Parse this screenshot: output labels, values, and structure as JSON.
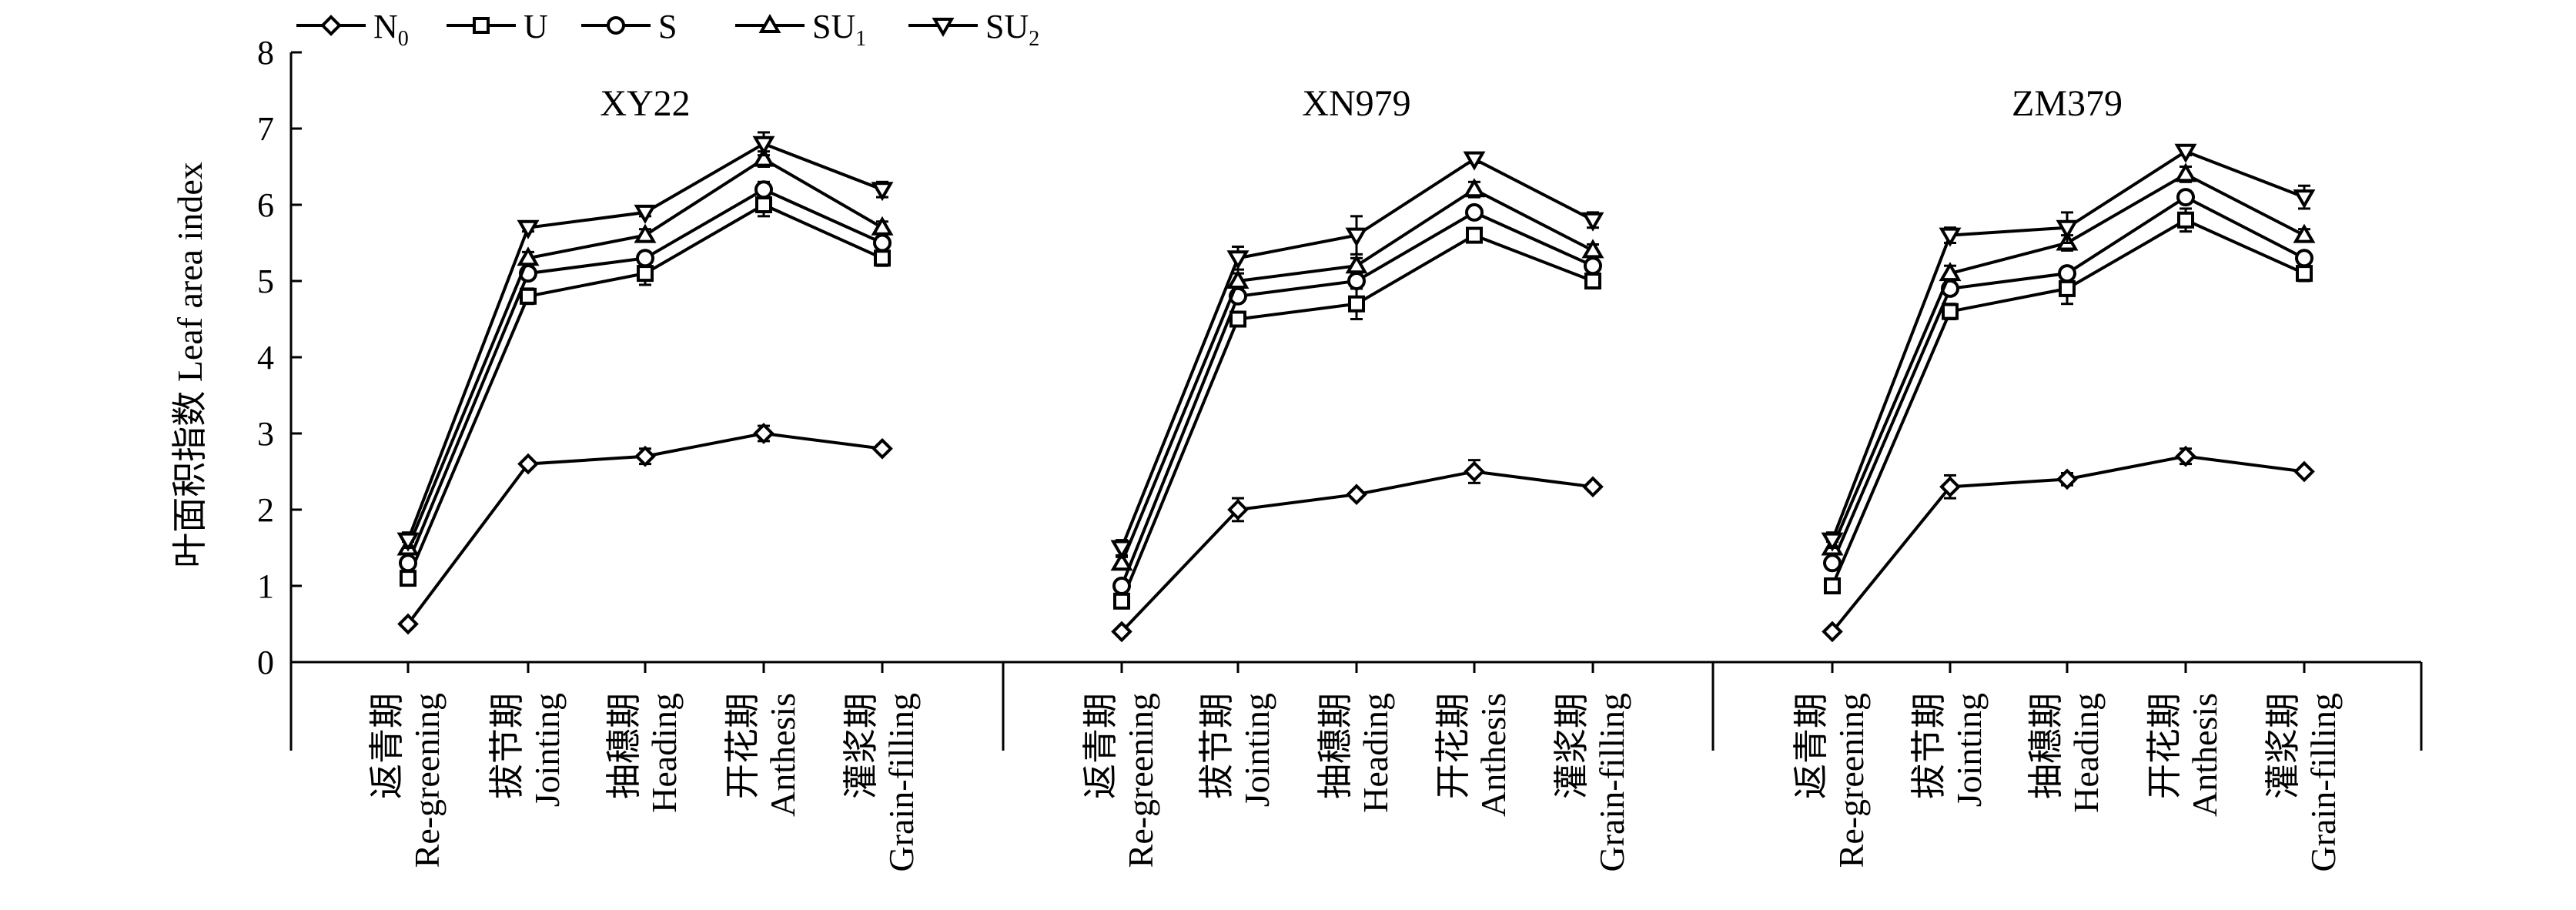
{
  "chart_data": {
    "type": "line",
    "ylabel": "叶面积指数 Leaf area index",
    "xlabel": "",
    "ylim": [
      0,
      8
    ],
    "yticks": [
      "0",
      "1",
      "2",
      "3",
      "4",
      "5",
      "6",
      "7",
      "8"
    ],
    "grid": false,
    "legend_placement": "top-left",
    "line_color": "#000000",
    "categories": [
      {
        "zh": "返青期",
        "en": "Re-greening"
      },
      {
        "zh": "拔节期",
        "en": "Jointing"
      },
      {
        "zh": "抽穗期",
        "en": "Heading"
      },
      {
        "zh": "开花期",
        "en": "Anthesis"
      },
      {
        "zh": "灌浆期",
        "en": "Grain-filling"
      }
    ],
    "legend": [
      {
        "base": "N",
        "sub": "0",
        "marker": "diamond"
      },
      {
        "base": "U",
        "sub": "",
        "marker": "square"
      },
      {
        "base": "S",
        "sub": "",
        "marker": "circle"
      },
      {
        "base": "SU",
        "sub": "1",
        "marker": "triangle-up"
      },
      {
        "base": "SU",
        "sub": "2",
        "marker": "triangle-down"
      }
    ],
    "panels": [
      {
        "title": "XY22",
        "series": [
          {
            "name": "N0",
            "values": [
              0.5,
              2.6,
              2.7,
              3.0,
              2.8
            ],
            "errors": [
              0.02,
              0.03,
              0.1,
              0.1,
              0.05
            ]
          },
          {
            "name": "U",
            "values": [
              1.1,
              4.8,
              5.1,
              6.0,
              5.3
            ],
            "errors": [
              0.05,
              0.1,
              0.15,
              0.15,
              0.1
            ]
          },
          {
            "name": "S",
            "values": [
              1.3,
              5.1,
              5.3,
              6.2,
              5.5
            ],
            "errors": [
              0.05,
              0.08,
              0.08,
              0.1,
              0.08
            ]
          },
          {
            "name": "SU1",
            "values": [
              1.5,
              5.3,
              5.6,
              6.6,
              5.7
            ],
            "errors": [
              0.08,
              0.08,
              0.08,
              0.1,
              0.08
            ]
          },
          {
            "name": "SU2",
            "values": [
              1.6,
              5.7,
              5.9,
              6.8,
              6.2
            ],
            "errors": [
              0.1,
              0.05,
              0.05,
              0.15,
              0.1
            ]
          }
        ]
      },
      {
        "title": "XN979",
        "series": [
          {
            "name": "N0",
            "values": [
              0.4,
              2.0,
              2.2,
              2.5,
              2.3
            ],
            "errors": [
              0.02,
              0.15,
              0.05,
              0.15,
              0.05
            ]
          },
          {
            "name": "U",
            "values": [
              0.8,
              4.5,
              4.7,
              5.6,
              5.0
            ],
            "errors": [
              0.05,
              0.08,
              0.2,
              0.05,
              0.08
            ]
          },
          {
            "name": "S",
            "values": [
              1.0,
              4.8,
              5.0,
              5.9,
              5.2
            ],
            "errors": [
              0.05,
              0.08,
              0.08,
              0.08,
              0.08
            ]
          },
          {
            "name": "SU1",
            "values": [
              1.3,
              5.0,
              5.2,
              6.2,
              5.4
            ],
            "errors": [
              0.08,
              0.1,
              0.1,
              0.1,
              0.08
            ]
          },
          {
            "name": "SU2",
            "values": [
              1.5,
              5.3,
              5.6,
              6.6,
              5.8
            ],
            "errors": [
              0.1,
              0.15,
              0.25,
              0.05,
              0.1
            ]
          }
        ]
      },
      {
        "title": "ZM379",
        "series": [
          {
            "name": "N0",
            "values": [
              0.4,
              2.3,
              2.4,
              2.7,
              2.5
            ],
            "errors": [
              0.02,
              0.15,
              0.08,
              0.1,
              0.05
            ]
          },
          {
            "name": "U",
            "values": [
              1.0,
              4.6,
              4.9,
              5.8,
              5.1
            ],
            "errors": [
              0.05,
              0.1,
              0.2,
              0.15,
              0.1
            ]
          },
          {
            "name": "S",
            "values": [
              1.3,
              4.9,
              5.1,
              6.1,
              5.3
            ],
            "errors": [
              0.05,
              0.08,
              0.08,
              0.08,
              0.08
            ]
          },
          {
            "name": "SU1",
            "values": [
              1.5,
              5.1,
              5.5,
              6.4,
              5.6
            ],
            "errors": [
              0.08,
              0.1,
              0.1,
              0.1,
              0.08
            ]
          },
          {
            "name": "SU2",
            "values": [
              1.6,
              5.6,
              5.7,
              6.7,
              6.1
            ],
            "errors": [
              0.1,
              0.1,
              0.2,
              0.05,
              0.15
            ]
          }
        ]
      }
    ]
  }
}
